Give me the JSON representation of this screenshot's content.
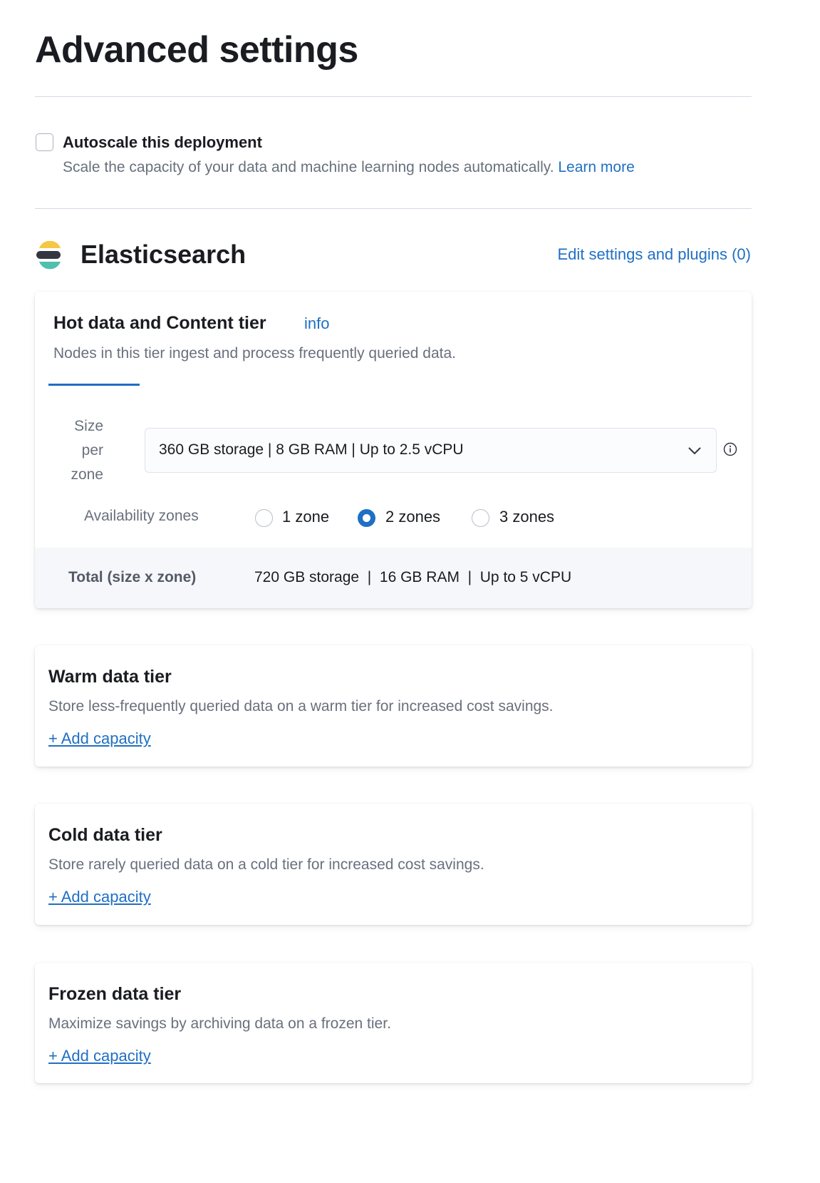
{
  "page_title": "Advanced settings",
  "autoscale": {
    "label": "Autoscale this deployment",
    "checked": false,
    "description": "Scale the capacity of your data and machine learning nodes automatically.",
    "learn_more": "Learn more"
  },
  "elasticsearch": {
    "title": "Elasticsearch",
    "edit_link": "Edit settings and plugins (0)",
    "hot": {
      "title": "Hot data and Content tier",
      "info": "info",
      "description": "Nodes in this tier ingest and process frequently queried data.",
      "size_label": [
        "Size",
        "per",
        "zone"
      ],
      "size_value": "360 GB storage | 8 GB RAM | Up to 2.5 vCPU",
      "zones_label": "Availability zones",
      "zones": [
        {
          "label": "1 zone",
          "selected": false
        },
        {
          "label": "2 zones",
          "selected": true
        },
        {
          "label": "3 zones",
          "selected": false
        }
      ],
      "total_label": "Total (size x zone)",
      "total": [
        "720 GB storage",
        "16 GB RAM",
        "Up to 5 vCPU"
      ],
      "separator": "|"
    },
    "tiers": [
      {
        "title": "Warm data tier",
        "description": "Store less-frequently queried data on a warm tier for increased cost savings.",
        "action": "+ Add capacity"
      },
      {
        "title": "Cold data tier",
        "description": "Store rarely queried data on a cold tier for increased cost savings.",
        "action": "+ Add capacity"
      },
      {
        "title": "Frozen data tier",
        "description": "Maximize savings by archiving data on a frozen tier.",
        "action": "+ Add capacity"
      }
    ]
  },
  "colors": {
    "accent": "#1f6fc5",
    "logo_yellow": "#f6c744",
    "logo_dark": "#343741",
    "logo_teal": "#4fbfb0",
    "total_bg": "#f5f7fa"
  }
}
